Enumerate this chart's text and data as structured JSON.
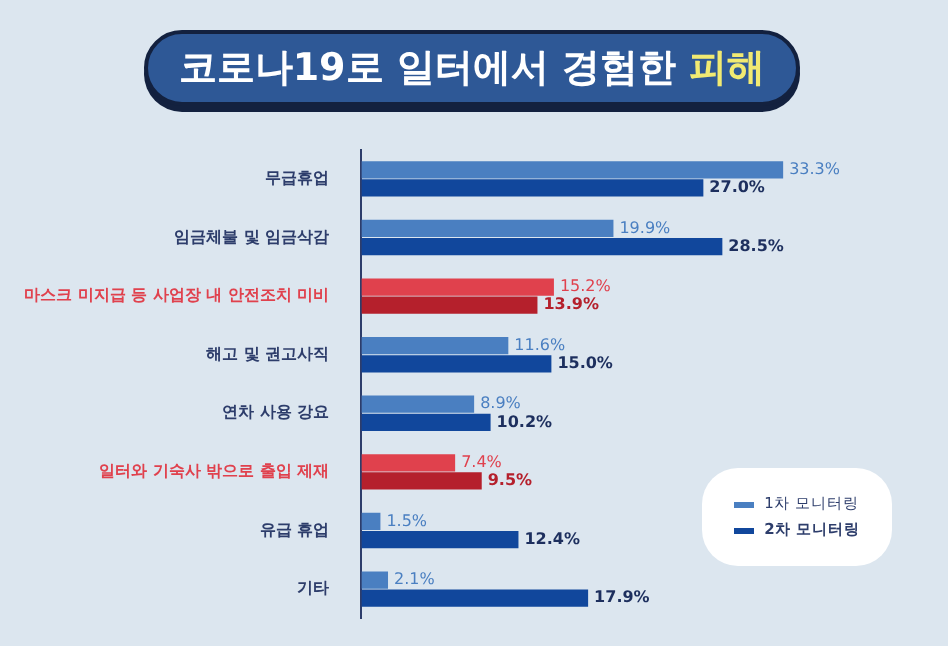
{
  "chart_data": {
    "type": "bar",
    "orientation": "horizontal",
    "title": "코로나19로 일터에서 경험한 피해",
    "categories": [
      "무급휴업",
      "임금체불 및 임금삭감",
      "마스크 미지급 등 사업장 내 안전조치 미비",
      "해고 및 권고사직",
      "연차 사용 강요",
      "일터와 기숙사 밖으로 출입 제재",
      "유급 휴업",
      "기타"
    ],
    "series": [
      {
        "name": "1차 모니터링",
        "color": "#4a7fc1",
        "colors": [
          "#4a7fc1",
          "#4a7fc1",
          "#e0414d",
          "#4a7fc1",
          "#4a7fc1",
          "#e0414d",
          "#4a7fc1",
          "#4a7fc1"
        ],
        "values": [
          33.3,
          19.9,
          15.2,
          11.6,
          8.9,
          7.4,
          1.5,
          2.1
        ],
        "value_labels": [
          "33.3%",
          "19.9%",
          "15.2%",
          "11.6%",
          "8.9%",
          "7.4%",
          "1.5%",
          "2.1%"
        ]
      },
      {
        "name": "2차 모니터링",
        "color": "#11479c",
        "colors": [
          "#11479c",
          "#11479c",
          "#b5202c",
          "#11479c",
          "#11479c",
          "#b5202c",
          "#11479c",
          "#11479c"
        ],
        "values": [
          27.0,
          28.5,
          13.9,
          15.0,
          10.2,
          9.5,
          12.4,
          17.9
        ],
        "value_labels": [
          "27.0%",
          "28.5%",
          "13.9%",
          "15.0%",
          "10.2%",
          "9.5%",
          "12.4%",
          "17.9%"
        ]
      }
    ],
    "legend": "bottom right",
    "grid": false
  }
}
